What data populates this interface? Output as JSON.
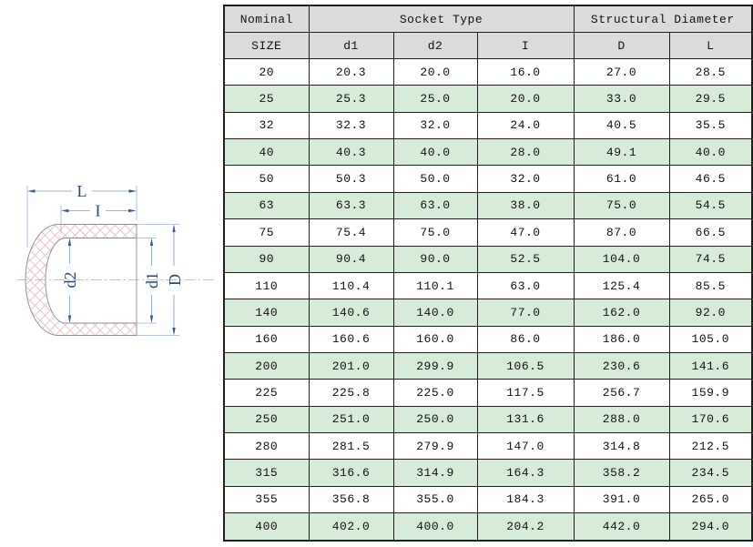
{
  "chart_data": {
    "type": "table",
    "header_row1": {
      "nominal": "Nominal",
      "socket_type": "Socket Type",
      "structural_diameter": "Structural Diameter"
    },
    "header_row2": [
      "SIZE",
      "d1",
      "d2",
      "I",
      "D",
      "L"
    ],
    "rows": [
      [
        "20",
        "20.3",
        "20.0",
        "16.0",
        "27.0",
        "28.5"
      ],
      [
        "25",
        "25.3",
        "25.0",
        "20.0",
        "33.0",
        "29.5"
      ],
      [
        "32",
        "32.3",
        "32.0",
        "24.0",
        "40.5",
        "35.5"
      ],
      [
        "40",
        "40.3",
        "40.0",
        "28.0",
        "49.1",
        "40.0"
      ],
      [
        "50",
        "50.3",
        "50.0",
        "32.0",
        "61.0",
        "46.5"
      ],
      [
        "63",
        "63.3",
        "63.0",
        "38.0",
        "75.0",
        "54.5"
      ],
      [
        "75",
        "75.4",
        "75.0",
        "47.0",
        "87.0",
        "66.5"
      ],
      [
        "90",
        "90.4",
        "90.0",
        "52.5",
        "104.0",
        "74.5"
      ],
      [
        "110",
        "110.4",
        "110.1",
        "63.0",
        "125.4",
        "85.5"
      ],
      [
        "140",
        "140.6",
        "140.0",
        "77.0",
        "162.0",
        "92.0"
      ],
      [
        "160",
        "160.6",
        "160.0",
        "86.0",
        "186.0",
        "105.0"
      ],
      [
        "200",
        "201.0",
        "299.9",
        "106.5",
        "230.6",
        "141.6"
      ],
      [
        "225",
        "225.8",
        "225.0",
        "117.5",
        "256.7",
        "159.9"
      ],
      [
        "250",
        "251.0",
        "250.0",
        "131.6",
        "288.0",
        "170.6"
      ],
      [
        "280",
        "281.5",
        "279.9",
        "147.0",
        "314.8",
        "212.5"
      ],
      [
        "315",
        "316.6",
        "314.9",
        "164.3",
        "358.2",
        "234.5"
      ],
      [
        "355",
        "356.8",
        "355.0",
        "184.3",
        "391.0",
        "265.0"
      ],
      [
        "400",
        "402.0",
        "400.0",
        "204.2",
        "442.0",
        "294.0"
      ]
    ]
  },
  "diagram": {
    "dim_labels": {
      "overall_length": "L",
      "socket_depth": "I",
      "inner_diameter": "d2",
      "socket_diameter": "d1",
      "outer_diameter": "D"
    }
  },
  "colors": {
    "row_alt_green": "#d6ebd8",
    "header_gray": "#dbdbdb",
    "table_border": "#1f1f1f",
    "dimension_label_blue": "#26497e",
    "dimension_line_blue": "#7e9cc9",
    "arrow_blue": "#35599c",
    "hatch_pink": "#e6bfbf",
    "outline_gray": "#8c8c8c",
    "centerline_red": "#e29a9a"
  }
}
